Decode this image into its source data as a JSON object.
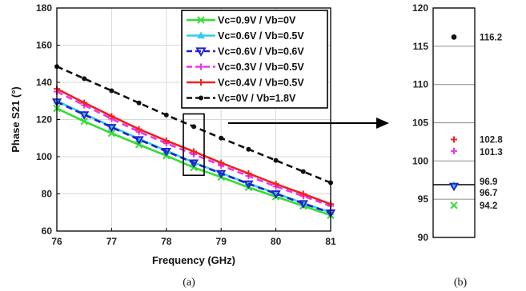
{
  "chart_data": [
    {
      "type": "line",
      "caption": "(a)",
      "xlabel": "Frequency (GHz)",
      "ylabel": "Phase S21 (°)",
      "xlim": [
        76,
        81
      ],
      "ylim": [
        60,
        180
      ],
      "xticks": [
        76,
        77,
        78,
        79,
        80,
        81
      ],
      "yticks": [
        60,
        80,
        100,
        120,
        140,
        160,
        180
      ],
      "grid": true,
      "legend_position": "top-right",
      "x": [
        76,
        76.5,
        77,
        77.5,
        78,
        78.5,
        79,
        79.5,
        80,
        80.5,
        81
      ],
      "series": [
        {
          "name": "Vc=0.9V / Vb=0V",
          "color": "#33dd33",
          "marker": "x",
          "dash": false,
          "values": [
            126,
            119,
            112.6,
            106.5,
            100.5,
            94.2,
            89,
            83.5,
            78.5,
            73.5,
            68.5
          ]
        },
        {
          "name": "Vc=0.6V / Vb=0.5V",
          "color": "#33ccee",
          "marker": "triangle",
          "dash": false,
          "values": [
            130,
            123,
            116.2,
            109.6,
            103.2,
            96.9,
            91.2,
            85.6,
            80.3,
            75,
            70
          ]
        },
        {
          "name": "Vc=0.6V / Vb=0.6V",
          "color": "#2222cc",
          "marker": "triangle-down",
          "dash": true,
          "values": [
            129.5,
            122.6,
            115.8,
            109.2,
            102.9,
            96.7,
            91,
            85.4,
            80.1,
            74.8,
            69.8
          ]
        },
        {
          "name": "Vc=0.3V / Vb=0.5V",
          "color": "#ee33ee",
          "marker": "plus",
          "dash": true,
          "values": [
            135,
            127.7,
            120.4,
            113.4,
            107.2,
            101.3,
            95.3,
            89.6,
            84,
            78.8,
            73.5
          ]
        },
        {
          "name": "Vc=0.4V / Vb=0.5V",
          "color": "#ee2222",
          "marker": "plus",
          "dash": false,
          "values": [
            136.5,
            129,
            121.8,
            114.8,
            108.6,
            102.8,
            96.7,
            91,
            85.3,
            80,
            74.5
          ]
        },
        {
          "name": "Vc=0V / Vb=1.8V",
          "color": "#111111",
          "marker": "circle",
          "dash": true,
          "values": [
            148.5,
            142,
            135.5,
            128.9,
            122.4,
            116.2,
            110,
            104,
            98,
            92,
            86
          ]
        }
      ]
    },
    {
      "type": "scatter",
      "caption": "(b)",
      "ylim": [
        90,
        120
      ],
      "yticks": [
        90,
        95,
        100,
        105,
        110,
        115,
        120
      ],
      "grid": true,
      "points": [
        {
          "value": 116.2,
          "label": "116.2",
          "color": "#111111",
          "marker": "circle"
        },
        {
          "value": 102.8,
          "label": "102.8",
          "color": "#ee2222",
          "marker": "plus"
        },
        {
          "value": 101.3,
          "label": "101.3",
          "color": "#ee33ee",
          "marker": "plus"
        },
        {
          "value": 96.9,
          "label": "96.9",
          "color": "#33ccee",
          "marker": "triangle"
        },
        {
          "value": 96.7,
          "label": "96.7",
          "color": "#2222cc",
          "marker": "triangle-down"
        },
        {
          "value": 94.2,
          "label": "94.2",
          "color": "#33dd33",
          "marker": "x"
        }
      ]
    }
  ]
}
